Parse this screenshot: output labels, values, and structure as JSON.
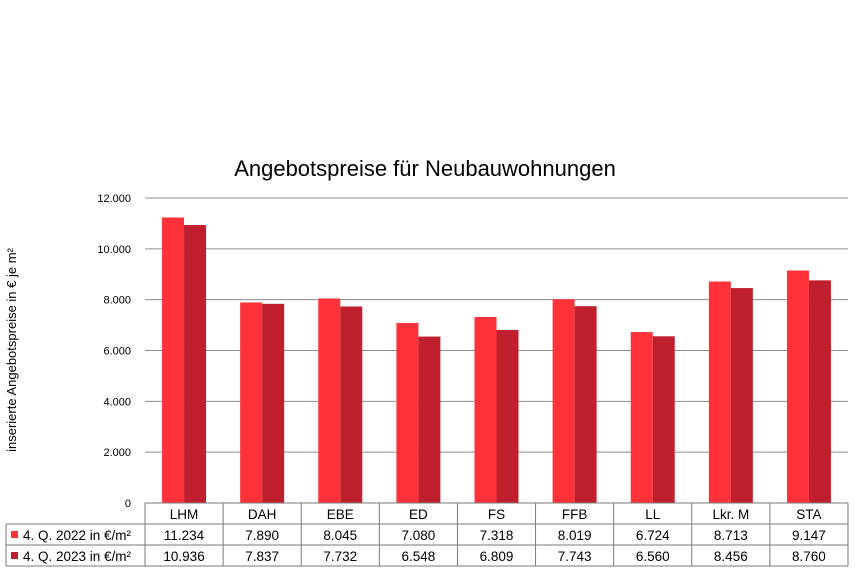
{
  "colors": {
    "series_2022": "#ff3139",
    "series_2023": "#c0202e",
    "grid": "#8c8c8c",
    "border": "#7a7a7a"
  },
  "chart_data": {
    "type": "bar",
    "title": "Angebotspreise für Neubauwohnungen",
    "ylabel": "inserierte Angebotspreise in € je m²",
    "xlabel": "",
    "ylim": [
      0,
      12000
    ],
    "y_ticks": [
      "0",
      "2.000",
      "4.000",
      "6.000",
      "8.000",
      "10.000",
      "12.000"
    ],
    "y_tick_values": [
      0,
      2000,
      4000,
      6000,
      8000,
      10000,
      12000
    ],
    "grid": true,
    "legend": "data-table",
    "categories": [
      "LHM",
      "DAH",
      "EBE",
      "ED",
      "FS",
      "FFB",
      "LL",
      "Lkr. M",
      "STA"
    ],
    "series": [
      {
        "name": "4. Q. 2022 in €/m²",
        "color": "#ff3139",
        "values": [
          11234,
          7890,
          8045,
          7080,
          7318,
          8019,
          6724,
          8713,
          9147
        ],
        "labels": [
          "11.234",
          "7.890",
          "8.045",
          "7.080",
          "7.318",
          "8.019",
          "6.724",
          "8.713",
          "9.147"
        ]
      },
      {
        "name": "4. Q. 2023 in €/m²",
        "color": "#c0202e",
        "values": [
          10936,
          7837,
          7732,
          6548,
          6809,
          7743,
          6560,
          8456,
          8760
        ],
        "labels": [
          "10.936",
          "7.837",
          "7.732",
          "6.548",
          "6.809",
          "7.743",
          "6.560",
          "8.456",
          "8.760"
        ]
      }
    ]
  }
}
